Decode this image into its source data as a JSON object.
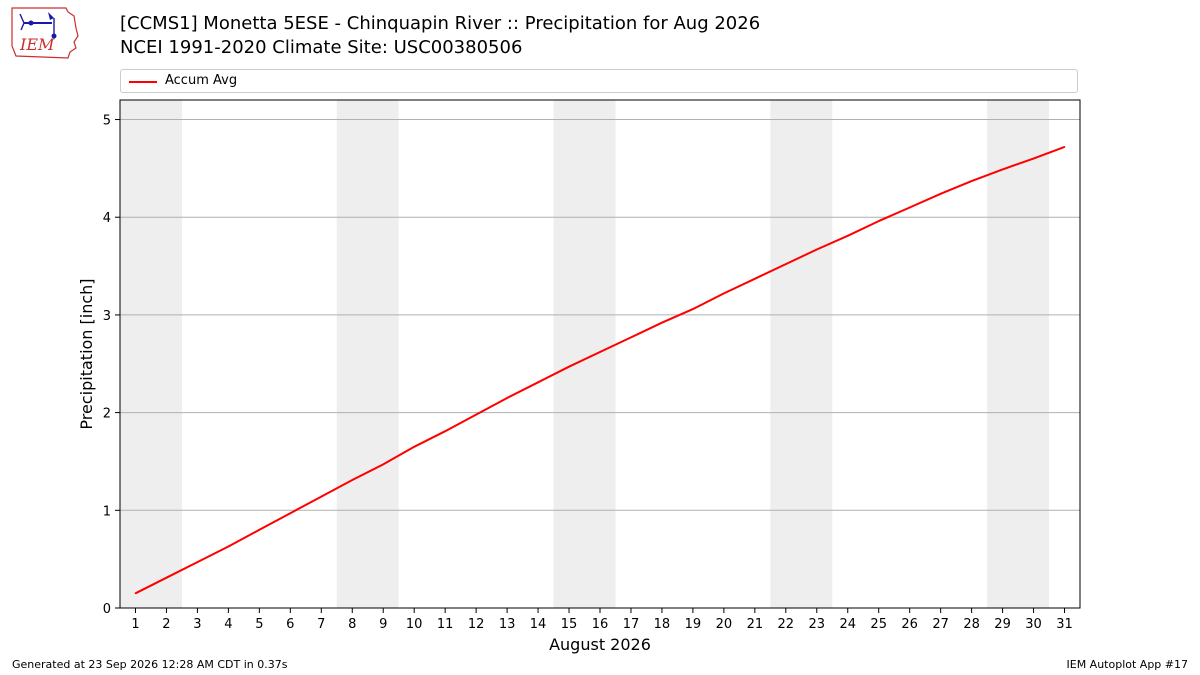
{
  "logo": {
    "text": "IEM"
  },
  "header": {
    "title_line1": "[CCMS1] Monetta 5ESE - Chinquapin River :: Precipitation for Aug 2026",
    "title_line2": "NCEI 1991-2020 Climate Site: USC00380506"
  },
  "legend": {
    "items": [
      {
        "label": "Accum Avg",
        "color": "#ff0000"
      }
    ]
  },
  "footer": {
    "left": "Generated at 23 Sep 2026 12:28 AM CDT in 0.37s",
    "right": "IEM Autoplot App #17"
  },
  "chart_data": {
    "type": "line",
    "xlabel": "August 2026",
    "ylabel": "Precipitation [inch]",
    "xlim": [
      0.5,
      31.5
    ],
    "ylim": [
      0,
      5.2
    ],
    "x": [
      1,
      2,
      3,
      4,
      5,
      6,
      7,
      8,
      9,
      10,
      11,
      12,
      13,
      14,
      15,
      16,
      17,
      18,
      19,
      20,
      21,
      22,
      23,
      24,
      25,
      26,
      27,
      28,
      29,
      30,
      31
    ],
    "xticks": [
      "1",
      "2",
      "3",
      "4",
      "5",
      "6",
      "7",
      "8",
      "9",
      "10",
      "11",
      "12",
      "13",
      "14",
      "15",
      "16",
      "17",
      "18",
      "19",
      "20",
      "21",
      "22",
      "23",
      "24",
      "25",
      "26",
      "27",
      "28",
      "29",
      "30",
      "31"
    ],
    "yticks": [
      0,
      1,
      2,
      3,
      4,
      5
    ],
    "grid": "horizontal",
    "legend_position": "top",
    "weekend_shading": [
      [
        1,
        2
      ],
      [
        8,
        9
      ],
      [
        15,
        16
      ],
      [
        22,
        23
      ],
      [
        29,
        30
      ]
    ],
    "shading_color": "#eeeeee",
    "series": [
      {
        "name": "Accum Avg",
        "color": "#ff0000",
        "values": [
          0.15,
          0.31,
          0.47,
          0.63,
          0.8,
          0.97,
          1.14,
          1.31,
          1.47,
          1.65,
          1.81,
          1.98,
          2.15,
          2.31,
          2.47,
          2.62,
          2.77,
          2.92,
          3.06,
          3.22,
          3.37,
          3.52,
          3.67,
          3.81,
          3.96,
          4.1,
          4.24,
          4.37,
          4.49,
          4.6,
          4.72
        ]
      }
    ]
  }
}
